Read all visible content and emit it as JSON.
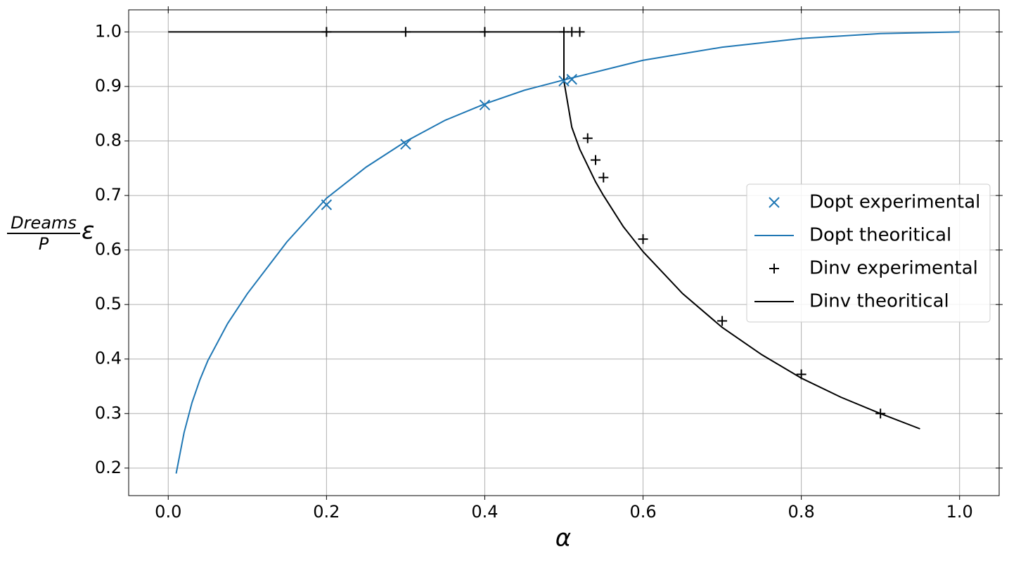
{
  "chart_data": {
    "type": "line",
    "xlabel": "α",
    "ylabel": {
      "numerator": "Dreams",
      "denominator": "P",
      "symbol": "ε"
    },
    "xlim": [
      -0.05,
      1.05
    ],
    "ylim": [
      0.1495,
      1.0405
    ],
    "xticks": [
      {
        "value": 0,
        "label": "0.0"
      },
      0.2,
      0.4,
      0.6,
      0.8,
      {
        "value": 1,
        "label": "1.0"
      }
    ],
    "yticks": [
      0.2,
      0.3,
      0.4,
      0.5,
      0.6,
      0.7,
      0.8,
      0.9,
      {
        "value": 1,
        "label": "1.0"
      }
    ],
    "grid": true,
    "legend": "right",
    "series": [
      {
        "name": "Dopt experimental",
        "color": "#1f77b4",
        "style": "marker",
        "marker": "x",
        "x": [
          0.2,
          0.3,
          0.4,
          0.5,
          0.51
        ],
        "values": [
          0.683,
          0.794,
          0.866,
          0.91,
          0.913
        ]
      },
      {
        "name": "Dopt theoritical",
        "color": "#1f77b4",
        "style": "line",
        "x": [
          0.01,
          0.02,
          0.03,
          0.04,
          0.05,
          0.075,
          0.1,
          0.15,
          0.2,
          0.25,
          0.3,
          0.35,
          0.4,
          0.45,
          0.5,
          0.6,
          0.7,
          0.8,
          0.9,
          1.0
        ],
        "values": [
          0.19,
          0.265,
          0.32,
          0.362,
          0.397,
          0.465,
          0.52,
          0.615,
          0.695,
          0.752,
          0.799,
          0.838,
          0.868,
          0.893,
          0.912,
          0.948,
          0.972,
          0.988,
          0.997,
          1.0
        ]
      },
      {
        "name": "Dinv experimental",
        "color": "#000000",
        "style": "marker",
        "marker": "+",
        "x": [
          0.2,
          0.3,
          0.4,
          0.5,
          0.51,
          0.52,
          0.53,
          0.54,
          0.55,
          0.6,
          0.7,
          0.8,
          0.9
        ],
        "values": [
          1,
          1,
          1,
          1,
          1,
          1,
          0.805,
          0.765,
          0.733,
          0.62,
          0.47,
          0.372,
          0.3
        ]
      },
      {
        "name": "Dinv theoritical",
        "color": "#000000",
        "style": "line",
        "x": [
          0,
          0.5,
          0.5,
          0.51,
          0.52,
          0.53,
          0.54,
          0.55,
          0.575,
          0.6,
          0.65,
          0.7,
          0.75,
          0.8,
          0.85,
          0.9,
          0.95
        ],
        "values": [
          1,
          1,
          0.91,
          0.825,
          0.785,
          0.755,
          0.725,
          0.7,
          0.643,
          0.597,
          0.52,
          0.458,
          0.408,
          0.365,
          0.33,
          0.3,
          0.272
        ]
      }
    ]
  }
}
